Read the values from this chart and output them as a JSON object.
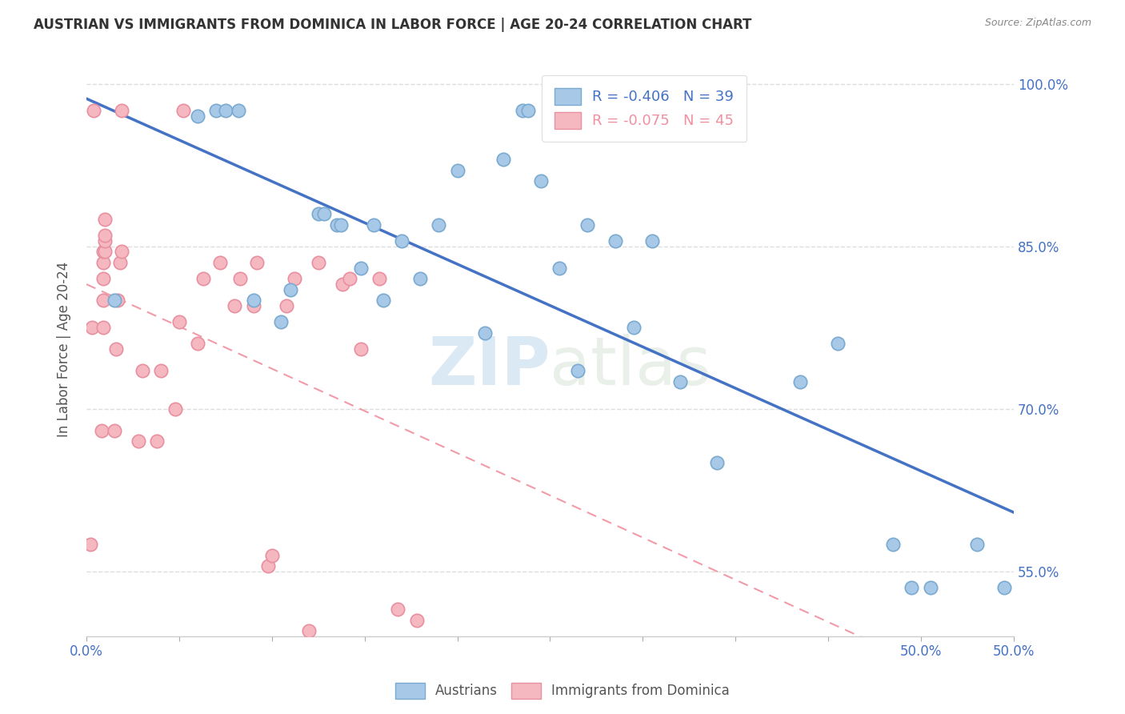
{
  "title": "AUSTRIAN VS IMMIGRANTS FROM DOMINICA IN LABOR FORCE | AGE 20-24 CORRELATION CHART",
  "source": "Source: ZipAtlas.com",
  "ylabel": "In Labor Force | Age 20-24",
  "xlim": [
    0.0,
    0.5
  ],
  "ylim": [
    0.49,
    1.02
  ],
  "xticks": [
    0.0,
    0.05,
    0.1,
    0.15,
    0.2,
    0.25,
    0.3,
    0.35,
    0.4,
    0.45,
    0.5
  ],
  "xticklabels_show": {
    "0.0": "0.0%",
    "0.5": "50.0%"
  },
  "yticks": [
    0.55,
    0.7,
    0.85,
    1.0
  ],
  "yticklabels": [
    "55.0%",
    "70.0%",
    "85.0%",
    "100.0%"
  ],
  "blue_color": "#A8C8E8",
  "blue_edge_color": "#7AAAD0",
  "pink_color": "#F5B8C0",
  "pink_edge_color": "#E890A0",
  "blue_line_color": "#4472C4",
  "pink_line_color": "#F090A0",
  "R_blue": -0.406,
  "N_blue": 39,
  "R_pink": -0.075,
  "N_pink": 45,
  "legend_label_blue": "Austrians",
  "legend_label_pink": "Immigrants from Dominica",
  "blue_scatter_x": [
    0.015,
    0.06,
    0.07,
    0.075,
    0.082,
    0.09,
    0.105,
    0.11,
    0.125,
    0.128,
    0.135,
    0.137,
    0.148,
    0.155,
    0.16,
    0.17,
    0.18,
    0.19,
    0.2,
    0.215,
    0.225,
    0.235,
    0.238,
    0.245,
    0.255,
    0.265,
    0.27,
    0.285,
    0.295,
    0.305,
    0.32,
    0.34,
    0.385,
    0.405,
    0.435,
    0.445,
    0.455,
    0.48,
    0.495
  ],
  "blue_scatter_y": [
    0.8,
    0.97,
    0.975,
    0.975,
    0.975,
    0.8,
    0.78,
    0.81,
    0.88,
    0.88,
    0.87,
    0.87,
    0.83,
    0.87,
    0.8,
    0.855,
    0.82,
    0.87,
    0.92,
    0.77,
    0.93,
    0.975,
    0.975,
    0.91,
    0.83,
    0.735,
    0.87,
    0.855,
    0.775,
    0.855,
    0.725,
    0.65,
    0.725,
    0.76,
    0.575,
    0.535,
    0.535,
    0.575,
    0.535
  ],
  "pink_scatter_x": [
    0.002,
    0.003,
    0.004,
    0.008,
    0.009,
    0.009,
    0.009,
    0.009,
    0.009,
    0.01,
    0.01,
    0.01,
    0.01,
    0.015,
    0.016,
    0.017,
    0.018,
    0.019,
    0.019,
    0.028,
    0.03,
    0.038,
    0.04,
    0.048,
    0.05,
    0.052,
    0.06,
    0.063,
    0.072,
    0.08,
    0.083,
    0.09,
    0.092,
    0.098,
    0.1,
    0.108,
    0.112,
    0.12,
    0.125,
    0.138,
    0.142,
    0.148,
    0.158,
    0.168,
    0.178
  ],
  "pink_scatter_y": [
    0.575,
    0.775,
    0.975,
    0.68,
    0.775,
    0.8,
    0.82,
    0.835,
    0.845,
    0.845,
    0.855,
    0.86,
    0.875,
    0.68,
    0.755,
    0.8,
    0.835,
    0.845,
    0.975,
    0.67,
    0.735,
    0.67,
    0.735,
    0.7,
    0.78,
    0.975,
    0.76,
    0.82,
    0.835,
    0.795,
    0.82,
    0.795,
    0.835,
    0.555,
    0.565,
    0.795,
    0.82,
    0.495,
    0.835,
    0.815,
    0.82,
    0.755,
    0.82,
    0.515,
    0.505
  ],
  "watermark_zip": "ZIP",
  "watermark_atlas": "atlas",
  "background_color": "#FFFFFF",
  "grid_color": "#DDDDDD"
}
